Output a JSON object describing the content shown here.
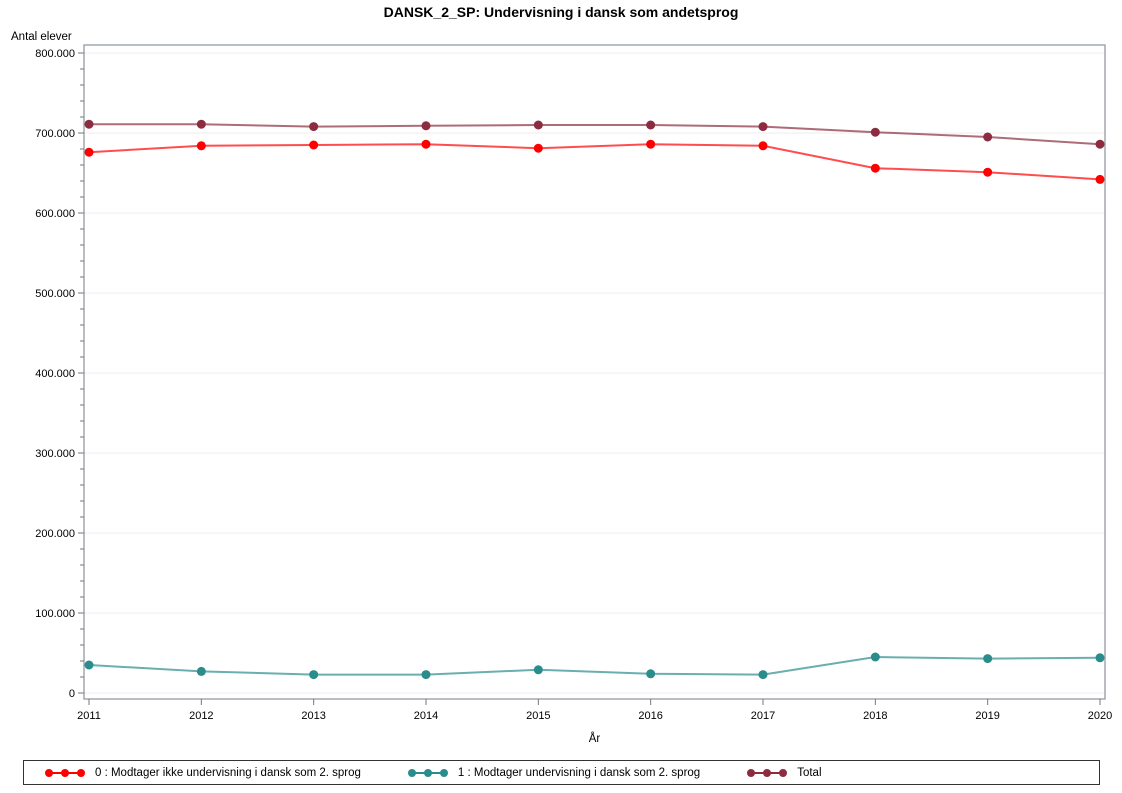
{
  "chart_data": {
    "type": "line",
    "title": "DANSK_2_SP: Undervisning i dansk som andetsprog",
    "xlabel": "År",
    "ylabel": "Antal elever",
    "x": [
      2011,
      2012,
      2013,
      2014,
      2015,
      2016,
      2017,
      2018,
      2019,
      2020
    ],
    "series": [
      {
        "name": "0 : Modtager ikke undervisning i dansk som 2. sprog",
        "color": "#FF0000",
        "values": [
          676000,
          684000,
          685000,
          686000,
          681000,
          686000,
          684000,
          656000,
          651000,
          642000
        ]
      },
      {
        "name": "1 : Modtager undervisning i dansk som 2. sprog",
        "color": "#2B8C8C",
        "values": [
          35000,
          27000,
          23000,
          23000,
          29000,
          24000,
          23000,
          45000,
          43000,
          44000
        ]
      },
      {
        "name": "Total",
        "color": "#8C2C40",
        "values": [
          711000,
          711000,
          708000,
          709000,
          710000,
          710000,
          708000,
          701000,
          695000,
          686000
        ]
      }
    ],
    "ylim": [
      0,
      800000
    ],
    "ytick_step": 100000,
    "minor_tick_step": 20000,
    "ytick_labels": [
      "0",
      "100.000",
      "200.000",
      "300.000",
      "400.000",
      "500.000",
      "600.000",
      "700.000",
      "800.000"
    ],
    "grid": "horizontal",
    "legend_position": "bottom"
  },
  "style": {
    "frame_color": "#8B929A",
    "grid_color": "#ECECEC",
    "tick_color": "#777777",
    "line_opacity": 0.7
  }
}
